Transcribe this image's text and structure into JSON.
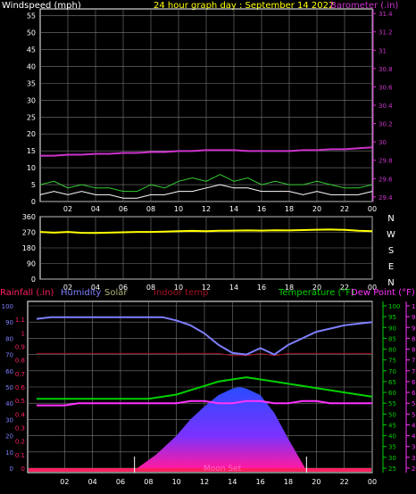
{
  "header": {
    "windspeed_label": "Windspeed (mph)",
    "title": "24 hour graph day : September 14 2022",
    "barometer_label": "Barometer (.in)"
  },
  "labels_bottom": {
    "rainfall": "Rainfall (.in)",
    "humidity": "Humidity",
    "solar": "Solar",
    "indoor_temp": "Indoor temp",
    "temperature": "Temperature (°F)",
    "dew_point": "Dew Point (°F)",
    "moon_set": "Moon Set"
  },
  "colors": {
    "grid": "#7a7a7a",
    "axis_white": "#ffffff",
    "barometer": "#cc33cc",
    "wind": "#ffffff",
    "gust": "#33cc33",
    "direction": "#ffff00",
    "humidity": "#7f7fff",
    "solar": "#b0b070",
    "indoor": "#a01020",
    "temperature": "#00d000",
    "dew_point": "#ff33ff",
    "rain": "#ff2060"
  },
  "chart_data": [
    {
      "type": "line",
      "title": "24 hour graph day : September 14 2022",
      "x_ticks": [
        "02",
        "04",
        "06",
        "08",
        "10",
        "12",
        "14",
        "16",
        "18",
        "20",
        "22",
        "00"
      ],
      "left_axis": {
        "label": "Windspeed (mph)",
        "range": [
          0,
          57
        ],
        "ticks": [
          0,
          5,
          10,
          15,
          20,
          25,
          30,
          35,
          40,
          45,
          50,
          55
        ]
      },
      "right_axis": {
        "label": "Barometer (.in)",
        "range": [
          29.35,
          31.45
        ],
        "ticks": [
          "29.4",
          "29.6",
          "29.8",
          "30",
          "30.2",
          "30.4",
          "30.6",
          "30.8",
          "31",
          "31.2",
          "31.4"
        ]
      },
      "series": [
        {
          "name": "Barometer (.in)",
          "axis": "right",
          "x": [
            0,
            1,
            2,
            3,
            4,
            5,
            6,
            7,
            8,
            9,
            10,
            11,
            12,
            13,
            14,
            15,
            16,
            17,
            18,
            19,
            20,
            21,
            22,
            23,
            24
          ],
          "y": [
            29.85,
            29.85,
            29.86,
            29.86,
            29.87,
            29.87,
            29.88,
            29.88,
            29.89,
            29.89,
            29.9,
            29.9,
            29.91,
            29.91,
            29.91,
            29.9,
            29.9,
            29.9,
            29.9,
            29.91,
            29.91,
            29.92,
            29.92,
            29.93,
            29.94
          ]
        },
        {
          "name": "Windspeed (mph)",
          "axis": "left",
          "x": [
            0,
            1,
            2,
            3,
            4,
            5,
            6,
            7,
            8,
            9,
            10,
            11,
            12,
            13,
            14,
            15,
            16,
            17,
            18,
            19,
            20,
            21,
            22,
            23,
            24
          ],
          "y": [
            2,
            3,
            2,
            3,
            2,
            2,
            1,
            1,
            2,
            2,
            3,
            3,
            4,
            5,
            4,
            4,
            3,
            3,
            3,
            2,
            3,
            2,
            2,
            2,
            3
          ]
        },
        {
          "name": "Gust (mph)",
          "axis": "left",
          "x": [
            0,
            1,
            2,
            3,
            4,
            5,
            6,
            7,
            8,
            9,
            10,
            11,
            12,
            13,
            14,
            15,
            16,
            17,
            18,
            19,
            20,
            21,
            22,
            23,
            24
          ],
          "y": [
            5,
            6,
            4,
            5,
            4,
            4,
            3,
            3,
            5,
            4,
            6,
            7,
            6,
            8,
            6,
            7,
            5,
            6,
            5,
            5,
            6,
            5,
            4,
            4,
            5
          ]
        }
      ]
    },
    {
      "type": "line",
      "title": "",
      "x_ticks": [
        "02",
        "04",
        "06",
        "08",
        "10",
        "12",
        "14",
        "16",
        "18",
        "20",
        "22",
        "00"
      ],
      "left_axis": {
        "range": [
          0,
          360
        ],
        "ticks": [
          0,
          90,
          180,
          270,
          360
        ]
      },
      "right_axis": {
        "compass": [
          "N",
          "W",
          "S",
          "E",
          "N"
        ]
      },
      "series": [
        {
          "name": "Wind direction",
          "x": [
            0,
            1,
            2,
            3,
            4,
            5,
            6,
            7,
            8,
            9,
            10,
            11,
            12,
            13,
            14,
            15,
            16,
            17,
            18,
            19,
            20,
            21,
            22,
            23,
            24
          ],
          "y": [
            272,
            268,
            272,
            267,
            266,
            268,
            270,
            272,
            272,
            274,
            276,
            278,
            276,
            279,
            280,
            281,
            280,
            282,
            281,
            283,
            285,
            286,
            284,
            279,
            276
          ]
        }
      ]
    },
    {
      "type": "area",
      "title": "",
      "x_ticks": [
        "02",
        "04",
        "06",
        "08",
        "10",
        "12",
        "14",
        "16",
        "18",
        "20",
        "22",
        "00"
      ],
      "humidity_axis": {
        "label": "Humidity",
        "range": [
          0,
          100
        ],
        "ticks": [
          0,
          10,
          20,
          30,
          40,
          50,
          60,
          70,
          80,
          90,
          100
        ]
      },
      "rain_axis": {
        "label": "Rainfall (.in)",
        "range": [
          0,
          1.2
        ],
        "ticks": [
          "0",
          "0.1",
          "0.2",
          "0.3",
          "0.4",
          "0.5",
          "0.6",
          "0.7",
          "0.8",
          "0.9",
          "1",
          "1.1"
        ]
      },
      "temperature_axis": {
        "label": "Temperature (°F)",
        "range": [
          25,
          100
        ],
        "ticks": [
          25,
          30,
          35,
          40,
          45,
          50,
          55,
          60,
          65,
          70,
          75,
          80,
          85,
          90,
          95,
          100
        ]
      },
      "dew_axis": {
        "label": "Dew Point (°F)",
        "range": [
          25,
          100
        ],
        "ticks": [
          25,
          30,
          35,
          40,
          45,
          50,
          55,
          60,
          65,
          70,
          75,
          80,
          85,
          90,
          95,
          100
        ]
      },
      "series": [
        {
          "name": "Humidity",
          "x": [
            0,
            1,
            2,
            3,
            4,
            5,
            6,
            7,
            8,
            9,
            10,
            11,
            12,
            13,
            14,
            15,
            16,
            17,
            18,
            19,
            20,
            21,
            22,
            23,
            24
          ],
          "y": [
            92,
            93,
            93,
            93,
            93,
            93,
            93,
            93,
            93,
            93,
            91,
            88,
            83,
            76,
            71,
            70,
            74,
            70,
            76,
            80,
            84,
            86,
            88,
            89,
            90
          ]
        },
        {
          "name": "Solar",
          "x": [
            0,
            1,
            2,
            3,
            4,
            5,
            6,
            7,
            8,
            9,
            10,
            11,
            12,
            13,
            14,
            15,
            16,
            17,
            18,
            19,
            20,
            21,
            22,
            23,
            24
          ],
          "y": [
            0,
            0,
            0,
            0,
            0,
            0,
            0,
            0,
            0,
            0,
            0,
            0,
            0,
            0,
            0,
            0,
            0,
            0,
            0,
            0,
            0,
            0,
            0,
            0,
            0
          ]
        },
        {
          "name": "Indoor temp",
          "x": [
            0,
            1,
            2,
            3,
            4,
            5,
            6,
            7,
            8,
            9,
            10,
            11,
            12,
            13,
            14,
            15,
            16,
            17,
            18,
            19,
            20,
            21,
            22,
            23,
            24
          ],
          "y": [
            78,
            78,
            78,
            78,
            78,
            78,
            78,
            78,
            78,
            78,
            78,
            78,
            78,
            78,
            77,
            77,
            78,
            77,
            78,
            78,
            78,
            78,
            78,
            78,
            78
          ]
        },
        {
          "name": "Temperature (°F)",
          "x": [
            0,
            1,
            2,
            3,
            4,
            5,
            6,
            7,
            8,
            9,
            10,
            11,
            12,
            13,
            14,
            15,
            16,
            17,
            18,
            19,
            20,
            21,
            22,
            23,
            24
          ],
          "y": [
            57,
            57,
            57,
            57,
            57,
            57,
            57,
            57,
            57,
            58,
            59,
            61,
            63,
            65,
            66,
            67,
            66,
            65,
            64,
            63,
            62,
            61,
            60,
            59,
            58
          ]
        },
        {
          "name": "Dew Point (°F)",
          "x": [
            0,
            1,
            2,
            3,
            4,
            5,
            6,
            7,
            8,
            9,
            10,
            11,
            12,
            13,
            14,
            15,
            16,
            17,
            18,
            19,
            20,
            21,
            22,
            23,
            24
          ],
          "y": [
            54,
            54,
            54,
            55,
            55,
            55,
            55,
            55,
            55,
            55,
            55,
            56,
            56,
            55,
            55,
            56,
            56,
            55,
            55,
            56,
            56,
            55,
            55,
            55,
            55
          ]
        },
        {
          "name": "Solar radiation (shaded)",
          "x": [
            7.2,
            8.5,
            10,
            11,
            12,
            13,
            14,
            14.5,
            15,
            16,
            17,
            18,
            19.2
          ],
          "y": [
            0,
            8,
            20,
            30,
            38,
            45,
            49,
            50,
            49,
            45,
            34,
            18,
            0
          ]
        },
        {
          "name": "Rainfall (.in)",
          "x": [
            0,
            24
          ],
          "y": [
            0,
            0
          ]
        }
      ],
      "annotations": [
        "Moon Set"
      ]
    }
  ]
}
